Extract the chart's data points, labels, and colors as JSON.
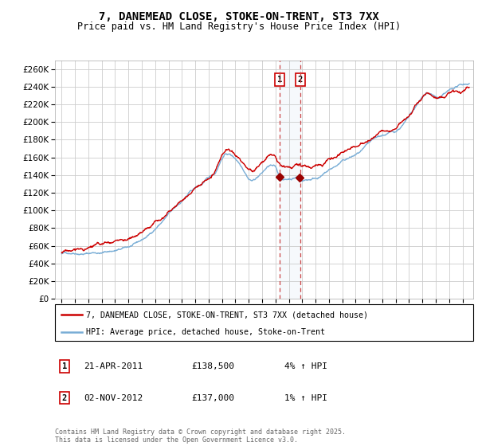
{
  "title": "7, DANEMEAD CLOSE, STOKE-ON-TRENT, ST3 7XX",
  "subtitle": "Price paid vs. HM Land Registry's House Price Index (HPI)",
  "ytick_values": [
    0,
    20000,
    40000,
    60000,
    80000,
    100000,
    120000,
    140000,
    160000,
    180000,
    200000,
    220000,
    240000,
    260000
  ],
  "ylim": [
    0,
    270000
  ],
  "xlim_start": 1994.5,
  "xlim_end": 2025.8,
  "marker1_date": 2011.3,
  "marker2_date": 2012.84,
  "marker1_price": 138500,
  "marker2_price": 137000,
  "sale1_date": "21-APR-2011",
  "sale1_price": "£138,500",
  "sale1_hpi": "4% ↑ HPI",
  "sale2_date": "02-NOV-2012",
  "sale2_price": "£137,000",
  "sale2_hpi": "1% ↑ HPI",
  "line1_label": "7, DANEMEAD CLOSE, STOKE-ON-TRENT, ST3 7XX (detached house)",
  "line1_color": "#cc0000",
  "line2_label": "HPI: Average price, detached house, Stoke-on-Trent",
  "line2_color": "#7aaed6",
  "footer": "Contains HM Land Registry data © Crown copyright and database right 2025.\nThis data is licensed under the Open Government Licence v3.0.",
  "background_color": "#ffffff",
  "plot_bg_color": "#ffffff",
  "grid_color": "#cccccc"
}
